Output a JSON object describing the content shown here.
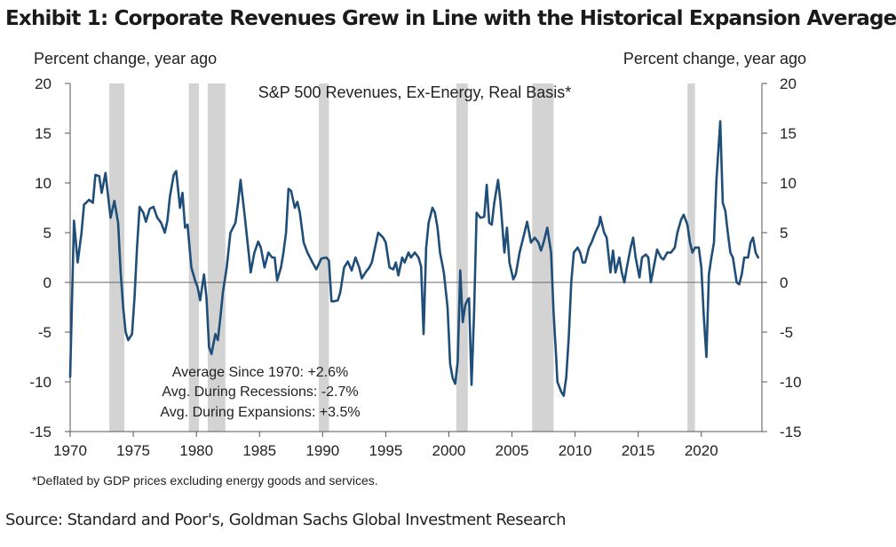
{
  "title": "Exhibit 1: Corporate Revenues Grew in Line with the Historical Expansion Average",
  "footnote": "*Deflated by GDP prices excluding energy goods and services.",
  "source": "Source: Standard and Poor's, Goldman Sachs Global Investment Research",
  "chart_data": {
    "type": "line",
    "title": "S&P 500 Revenues,  Ex-Energy, Real Basis*",
    "ylabel_left": "Percent change, year ago",
    "ylabel_right": "Percent change, year ago",
    "xlim": [
      1970,
      2024.8
    ],
    "ylim": [
      -15,
      20
    ],
    "x_ticks": [
      1970,
      1975,
      1980,
      1985,
      1990,
      1995,
      2000,
      2005,
      2010,
      2015,
      2020
    ],
    "x_tick_labels": [
      "1970",
      "1975",
      "1980",
      "1985",
      "1990",
      "1995",
      "2000",
      "2005",
      "2010",
      "2015",
      "2020"
    ],
    "y_ticks": [
      -15,
      -10,
      -5,
      0,
      5,
      10,
      15,
      20
    ],
    "y_tick_labels": [
      "-15",
      "-10",
      "-5",
      "0",
      "5",
      "10",
      "15",
      "20"
    ],
    "grid": false,
    "zero_line": true,
    "line_color": "#1f4e79",
    "recession_color": "#d3d3d3",
    "recessions": [
      [
        1973.1,
        1974.3
      ],
      [
        1979.4,
        1980.2
      ],
      [
        1980.9,
        1982.3
      ],
      [
        1989.7,
        1990.5
      ],
      [
        2000.6,
        2001.5
      ],
      [
        2006.6,
        2008.3
      ],
      [
        2018.9,
        2019.5
      ]
    ],
    "series": [
      {
        "values": [
          [
            1970.0,
            -9.5
          ],
          [
            1970.3,
            6.2
          ],
          [
            1970.6,
            2.0
          ],
          [
            1970.9,
            5.0
          ],
          [
            1971.1,
            7.8
          ],
          [
            1971.5,
            8.3
          ],
          [
            1971.8,
            8.0
          ],
          [
            1972.0,
            10.8
          ],
          [
            1972.3,
            10.7
          ],
          [
            1972.5,
            9.0
          ],
          [
            1972.8,
            11.0
          ],
          [
            1973.0,
            8.8
          ],
          [
            1973.2,
            6.5
          ],
          [
            1973.5,
            8.2
          ],
          [
            1973.8,
            6.0
          ],
          [
            1974.0,
            1.0
          ],
          [
            1974.2,
            -2.5
          ],
          [
            1974.4,
            -5.0
          ],
          [
            1974.6,
            -5.8
          ],
          [
            1974.9,
            -5.2
          ],
          [
            1975.1,
            -1.5
          ],
          [
            1975.3,
            3.5
          ],
          [
            1975.5,
            7.6
          ],
          [
            1975.8,
            7.0
          ],
          [
            1976.0,
            6.1
          ],
          [
            1976.3,
            7.4
          ],
          [
            1976.6,
            7.6
          ],
          [
            1976.9,
            6.5
          ],
          [
            1977.2,
            6.0
          ],
          [
            1977.5,
            5.0
          ],
          [
            1977.7,
            6.2
          ],
          [
            1977.9,
            8.6
          ],
          [
            1978.2,
            10.8
          ],
          [
            1978.4,
            11.2
          ],
          [
            1978.7,
            7.5
          ],
          [
            1978.9,
            9.0
          ],
          [
            1979.1,
            5.5
          ],
          [
            1979.3,
            5.8
          ],
          [
            1979.6,
            1.5
          ],
          [
            1979.9,
            0.2
          ],
          [
            1980.1,
            -0.5
          ],
          [
            1980.3,
            -1.8
          ],
          [
            1980.6,
            0.8
          ],
          [
            1980.8,
            -1.5
          ],
          [
            1981.0,
            -6.5
          ],
          [
            1981.2,
            -7.2
          ],
          [
            1981.5,
            -5.2
          ],
          [
            1981.7,
            -5.8
          ],
          [
            1981.9,
            -3.5
          ],
          [
            1982.1,
            -1.0
          ],
          [
            1982.4,
            1.5
          ],
          [
            1982.7,
            5.0
          ],
          [
            1983.1,
            6.0
          ],
          [
            1983.3,
            8.0
          ],
          [
            1983.5,
            10.3
          ],
          [
            1983.8,
            7.0
          ],
          [
            1984.1,
            3.5
          ],
          [
            1984.3,
            1.0
          ],
          [
            1984.6,
            3.0
          ],
          [
            1984.9,
            4.1
          ],
          [
            1985.1,
            3.5
          ],
          [
            1985.4,
            1.5
          ],
          [
            1985.7,
            3.0
          ],
          [
            1986.0,
            2.5
          ],
          [
            1986.2,
            2.5
          ],
          [
            1986.4,
            0.2
          ],
          [
            1986.7,
            1.5
          ],
          [
            1986.9,
            3.0
          ],
          [
            1987.1,
            5.0
          ],
          [
            1987.3,
            9.4
          ],
          [
            1987.5,
            9.2
          ],
          [
            1987.8,
            7.5
          ],
          [
            1988.0,
            8.1
          ],
          [
            1988.2,
            7.0
          ],
          [
            1988.5,
            4.0
          ],
          [
            1988.8,
            3.0
          ],
          [
            1989.2,
            2.0
          ],
          [
            1989.5,
            1.3
          ],
          [
            1989.9,
            2.4
          ],
          [
            1990.3,
            2.5
          ],
          [
            1990.5,
            2.2
          ],
          [
            1990.7,
            -1.9
          ],
          [
            1990.9,
            -1.9
          ],
          [
            1991.2,
            -1.8
          ],
          [
            1991.4,
            -1.0
          ],
          [
            1991.7,
            1.5
          ],
          [
            1992.0,
            2.1
          ],
          [
            1992.3,
            1.2
          ],
          [
            1992.6,
            2.5
          ],
          [
            1992.9,
            1.5
          ],
          [
            1993.1,
            0.4
          ],
          [
            1993.4,
            1.0
          ],
          [
            1993.7,
            1.5
          ],
          [
            1993.9,
            2.0
          ],
          [
            1994.1,
            3.2
          ],
          [
            1994.4,
            5.0
          ],
          [
            1994.8,
            4.5
          ],
          [
            1995.0,
            4.0
          ],
          [
            1995.3,
            1.5
          ],
          [
            1995.6,
            1.3
          ],
          [
            1995.8,
            2.0
          ],
          [
            1996.0,
            0.7
          ],
          [
            1996.3,
            2.5
          ],
          [
            1996.5,
            2.0
          ],
          [
            1996.8,
            3.0
          ],
          [
            1997.0,
            2.5
          ],
          [
            1997.3,
            3.0
          ],
          [
            1997.6,
            2.5
          ],
          [
            1997.8,
            1.6
          ],
          [
            1998.0,
            -5.2
          ],
          [
            1998.2,
            3.5
          ],
          [
            1998.4,
            6.0
          ],
          [
            1998.7,
            7.5
          ],
          [
            1998.9,
            7.0
          ],
          [
            1999.1,
            5.5
          ],
          [
            1999.3,
            3.0
          ],
          [
            1999.6,
            1.0
          ],
          [
            1999.9,
            -2.5
          ],
          [
            2000.1,
            -8.2
          ],
          [
            2000.3,
            -9.6
          ],
          [
            2000.5,
            -10.2
          ],
          [
            2000.7,
            -8.0
          ],
          [
            2000.9,
            1.2
          ],
          [
            2001.1,
            -4.0
          ],
          [
            2001.3,
            -2.3
          ],
          [
            2001.5,
            -1.7
          ],
          [
            2001.6,
            -1.6
          ],
          [
            2001.8,
            -10.3
          ],
          [
            2002.0,
            -3.0
          ],
          [
            2002.2,
            7.0
          ],
          [
            2002.5,
            6.5
          ],
          [
            2002.8,
            6.6
          ],
          [
            2003.0,
            9.8
          ],
          [
            2003.2,
            6.0
          ],
          [
            2003.4,
            5.8
          ],
          [
            2003.6,
            8.0
          ],
          [
            2003.9,
            10.3
          ],
          [
            2004.1,
            8.0
          ],
          [
            2004.4,
            3.0
          ],
          [
            2004.6,
            5.5
          ],
          [
            2004.8,
            2.0
          ],
          [
            2005.1,
            0.3
          ],
          [
            2005.3,
            0.8
          ],
          [
            2005.6,
            3.0
          ],
          [
            2005.9,
            4.5
          ],
          [
            2006.2,
            6.1
          ],
          [
            2006.5,
            4.0
          ],
          [
            2006.8,
            4.5
          ],
          [
            2007.1,
            4.0
          ],
          [
            2007.3,
            3.2
          ],
          [
            2007.5,
            4.0
          ],
          [
            2007.8,
            5.5
          ],
          [
            2008.1,
            3.0
          ],
          [
            2008.3,
            -3.0
          ],
          [
            2008.5,
            -7.5
          ],
          [
            2008.6,
            -10.0
          ],
          [
            2008.9,
            -11.0
          ],
          [
            2009.1,
            -11.4
          ],
          [
            2009.3,
            -9.5
          ],
          [
            2009.5,
            -5.5
          ],
          [
            2009.7,
            0.0
          ],
          [
            2009.9,
            3.0
          ],
          [
            2010.2,
            3.5
          ],
          [
            2010.4,
            3.0
          ],
          [
            2010.6,
            2.0
          ],
          [
            2010.8,
            2.0
          ],
          [
            2011.1,
            3.5
          ],
          [
            2011.3,
            4.0
          ],
          [
            2011.6,
            5.0
          ],
          [
            2011.9,
            5.8
          ],
          [
            2012.0,
            6.6
          ],
          [
            2012.3,
            5.0
          ],
          [
            2012.5,
            4.5
          ],
          [
            2012.8,
            1.0
          ],
          [
            2013.0,
            3.2
          ],
          [
            2013.2,
            1.0
          ],
          [
            2013.5,
            2.5
          ],
          [
            2013.7,
            1.0
          ],
          [
            2013.9,
            0.0
          ],
          [
            2014.1,
            1.5
          ],
          [
            2014.4,
            3.5
          ],
          [
            2014.6,
            4.5
          ],
          [
            2014.8,
            2.5
          ],
          [
            2015.1,
            0.5
          ],
          [
            2015.3,
            2.5
          ],
          [
            2015.6,
            2.8
          ],
          [
            2015.8,
            2.5
          ],
          [
            2016.0,
            0.0
          ],
          [
            2016.3,
            2.0
          ],
          [
            2016.5,
            3.3
          ],
          [
            2016.8,
            2.5
          ],
          [
            2017.0,
            2.3
          ],
          [
            2017.3,
            3.0
          ],
          [
            2017.6,
            3.0
          ],
          [
            2017.9,
            3.5
          ],
          [
            2018.1,
            5.0
          ],
          [
            2018.4,
            6.3
          ],
          [
            2018.6,
            6.8
          ],
          [
            2018.9,
            5.8
          ],
          [
            2019.1,
            4.0
          ],
          [
            2019.3,
            3.0
          ],
          [
            2019.5,
            3.5
          ],
          [
            2019.8,
            3.5
          ],
          [
            2020.0,
            1.5
          ],
          [
            2020.2,
            -3.5
          ],
          [
            2020.4,
            -7.5
          ],
          [
            2020.6,
            0.8
          ],
          [
            2020.8,
            2.5
          ],
          [
            2021.0,
            4.0
          ],
          [
            2021.2,
            10.3
          ],
          [
            2021.5,
            16.2
          ],
          [
            2021.7,
            8.0
          ],
          [
            2021.9,
            7.2
          ],
          [
            2022.1,
            5.0
          ],
          [
            2022.3,
            3.0
          ],
          [
            2022.5,
            2.5
          ],
          [
            2022.8,
            0.0
          ],
          [
            2023.0,
            -0.2
          ],
          [
            2023.2,
            0.8
          ],
          [
            2023.4,
            2.5
          ],
          [
            2023.7,
            2.5
          ],
          [
            2023.9,
            4.0
          ],
          [
            2024.1,
            4.5
          ],
          [
            2024.3,
            3.0
          ],
          [
            2024.5,
            2.5
          ]
        ]
      }
    ],
    "annotations": [
      "Average Since 1970: +2.6%",
      "Avg. During Recessions: -2.7%",
      "Avg. During Expansions: +3.5%"
    ]
  }
}
